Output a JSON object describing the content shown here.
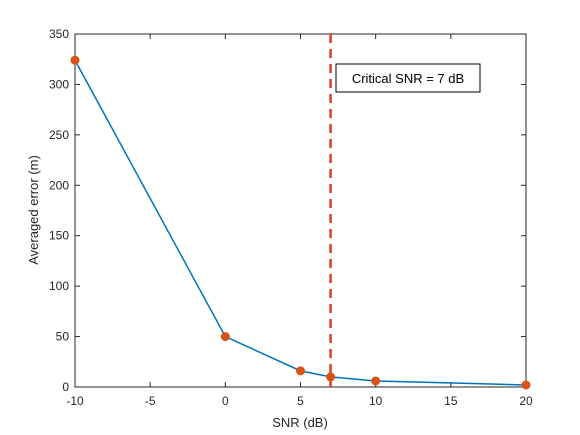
{
  "chart_data": {
    "type": "line",
    "title": "",
    "xlabel": "SNR (dB)",
    "ylabel": "Averaged error (m)",
    "xlim": [
      -10,
      20
    ],
    "ylim": [
      0,
      350
    ],
    "x_ticks": [
      -10,
      -5,
      0,
      5,
      10,
      15,
      20
    ],
    "y_ticks": [
      0,
      50,
      100,
      150,
      200,
      250,
      300,
      350
    ],
    "x_tick_labels": [
      "-10",
      "-5",
      "0",
      "5",
      "10",
      "15",
      "20"
    ],
    "y_tick_labels": [
      "0",
      "50",
      "100",
      "150",
      "200",
      "250",
      "300",
      "350"
    ],
    "grid": false,
    "series": [
      {
        "x": [
          -10,
          0,
          5,
          7,
          10,
          20
        ],
        "y": [
          324,
          50,
          16,
          10,
          6,
          2
        ],
        "line_color": "#0072BD",
        "marker_color": "#D95319"
      }
    ],
    "reference_line": {
      "x": 7,
      "color": "#D9402A",
      "style": "dashed"
    },
    "annotation": {
      "text": "Critical SNR = 7 dB"
    }
  }
}
